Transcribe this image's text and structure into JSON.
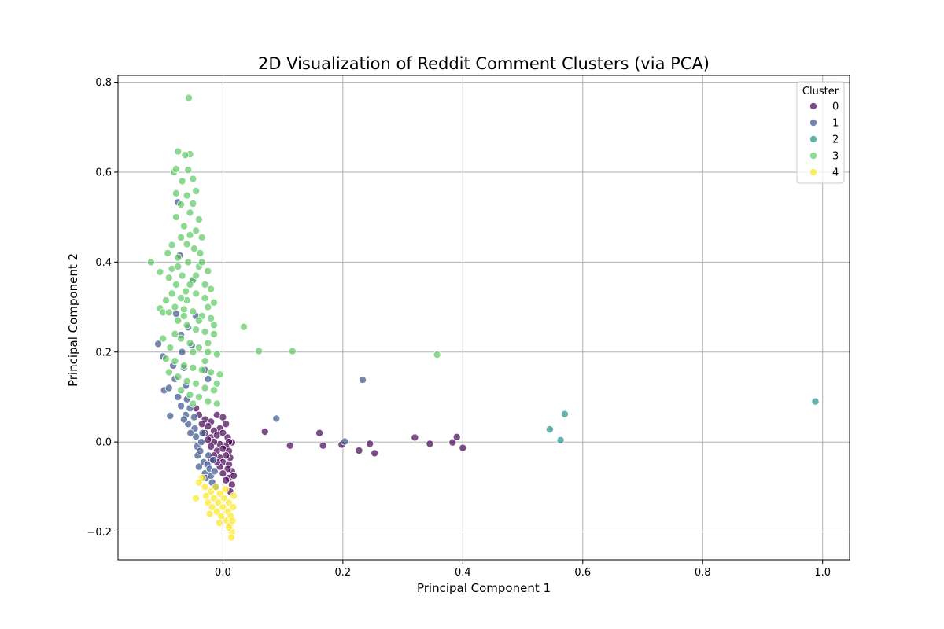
{
  "chart_data": {
    "type": "scatter",
    "title": "2D Visualization of Reddit Comment Clusters (via PCA)",
    "xlabel": "Principal Component 1",
    "ylabel": "Principal Component 2",
    "xlim": [
      -0.175,
      1.045
    ],
    "ylim": [
      -0.262,
      0.815
    ],
    "xticks": [
      0.0,
      0.2,
      0.4,
      0.6,
      0.8,
      1.0
    ],
    "xtick_labels": [
      "0.0",
      "0.2",
      "0.4",
      "0.6",
      "0.8",
      "1.0"
    ],
    "yticks": [
      -0.2,
      0.0,
      0.2,
      0.4,
      0.6,
      0.8
    ],
    "ytick_labels": [
      "−0.2",
      "0.0",
      "0.2",
      "0.4",
      "0.6",
      "0.8"
    ],
    "grid": true,
    "legend": {
      "title": "Cluster",
      "position": "top-right"
    },
    "point_alpha": 0.7,
    "series": [
      {
        "name": "0",
        "color": "#440154",
        "points": [
          [
            0.07,
            0.023
          ],
          [
            0.112,
            -0.008
          ],
          [
            0.161,
            0.02
          ],
          [
            0.167,
            -0.008
          ],
          [
            0.198,
            -0.006
          ],
          [
            0.227,
            -0.019
          ],
          [
            0.245,
            -0.004
          ],
          [
            0.253,
            -0.025
          ],
          [
            0.32,
            0.01
          ],
          [
            0.345,
            -0.004
          ],
          [
            0.383,
            -0.001
          ],
          [
            0.39,
            0.011
          ],
          [
            0.4,
            -0.013
          ],
          [
            0.015,
            -0.001
          ],
          [
            -0.045,
            0.075
          ],
          [
            -0.04,
            0.06
          ],
          [
            -0.03,
            0.05
          ],
          [
            -0.02,
            0.045
          ],
          [
            -0.01,
            0.06
          ],
          [
            0.0,
            0.055
          ],
          [
            0.005,
            0.04
          ],
          [
            -0.005,
            0.03
          ],
          [
            -0.015,
            0.025
          ],
          [
            -0.025,
            0.035
          ],
          [
            -0.035,
            0.04
          ],
          [
            -0.03,
            0.02
          ],
          [
            -0.02,
            0.01
          ],
          [
            -0.01,
            0.015
          ],
          [
            0.0,
            0.02
          ],
          [
            0.008,
            0.01
          ],
          [
            0.01,
            0.0
          ],
          [
            0.005,
            -0.01
          ],
          [
            -0.005,
            -0.005
          ],
          [
            -0.015,
            0.0
          ],
          [
            -0.025,
            0.005
          ],
          [
            -0.02,
            -0.01
          ],
          [
            -0.01,
            -0.02
          ],
          [
            0.0,
            -0.015
          ],
          [
            0.01,
            -0.02
          ],
          [
            0.012,
            -0.035
          ],
          [
            0.005,
            -0.03
          ],
          [
            -0.005,
            -0.035
          ],
          [
            -0.015,
            -0.03
          ],
          [
            0.0,
            -0.045
          ],
          [
            0.01,
            -0.05
          ],
          [
            0.015,
            -0.065
          ],
          [
            0.008,
            -0.06
          ],
          [
            0.0,
            -0.07
          ],
          [
            -0.005,
            -0.055
          ],
          [
            0.01,
            -0.08
          ],
          [
            0.015,
            -0.095
          ],
          [
            0.005,
            -0.085
          ],
          [
            0.012,
            -0.11
          ],
          [
            -0.01,
            -0.045
          ],
          [
            -0.02,
            -0.04
          ],
          [
            0.018,
            -0.075
          ]
        ]
      },
      {
        "name": "1",
        "color": "#3b528b",
        "points": [
          [
            0.233,
            0.138
          ],
          [
            0.089,
            0.052
          ],
          [
            0.203,
            0.001
          ],
          [
            -0.108,
            0.218
          ],
          [
            -0.1,
            0.19
          ],
          [
            -0.098,
            0.115
          ],
          [
            -0.088,
            0.058
          ],
          [
            -0.08,
            0.14
          ],
          [
            -0.078,
            0.285
          ],
          [
            -0.075,
            0.533
          ],
          [
            -0.072,
            0.415
          ],
          [
            -0.07,
            0.238
          ],
          [
            -0.068,
            0.2
          ],
          [
            -0.065,
            0.165
          ],
          [
            -0.062,
            0.125
          ],
          [
            -0.06,
            0.095
          ],
          [
            -0.058,
            0.255
          ],
          [
            -0.055,
            0.075
          ],
          [
            -0.052,
            0.215
          ],
          [
            -0.05,
            0.36
          ],
          [
            -0.048,
            0.055
          ],
          [
            -0.047,
            0.03
          ],
          [
            -0.045,
            0.012
          ],
          [
            -0.043,
            -0.01
          ],
          [
            -0.042,
            -0.03
          ],
          [
            -0.04,
            -0.055
          ],
          [
            -0.038,
            -0.02
          ],
          [
            -0.036,
            0.0
          ],
          [
            -0.034,
            0.02
          ],
          [
            -0.032,
            -0.045
          ],
          [
            -0.03,
            -0.07
          ],
          [
            -0.028,
            -0.08
          ],
          [
            -0.026,
            -0.05
          ],
          [
            -0.024,
            -0.03
          ],
          [
            -0.022,
            -0.06
          ],
          [
            -0.02,
            -0.075
          ],
          [
            -0.018,
            -0.09
          ],
          [
            -0.016,
            -0.04
          ],
          [
            -0.014,
            -0.065
          ],
          [
            -0.012,
            -0.1
          ],
          [
            -0.03,
            0.16
          ],
          [
            -0.025,
            0.14
          ],
          [
            -0.045,
            0.28
          ],
          [
            -0.062,
            0.06
          ],
          [
            -0.058,
            0.04
          ],
          [
            -0.054,
            0.02
          ],
          [
            -0.07,
            0.08
          ],
          [
            -0.075,
            0.1
          ],
          [
            -0.083,
            0.17
          ],
          [
            -0.09,
            0.12
          ],
          [
            -0.065,
            0.05
          ]
        ]
      },
      {
        "name": "2",
        "color": "#21918c",
        "points": [
          [
            0.545,
            0.028
          ],
          [
            0.57,
            0.062
          ],
          [
            0.563,
            0.004
          ],
          [
            0.988,
            0.09
          ]
        ]
      },
      {
        "name": "3",
        "color": "#5ec962",
        "points": [
          [
            -0.057,
            0.765
          ],
          [
            -0.075,
            0.646
          ],
          [
            -0.055,
            0.64
          ],
          [
            -0.063,
            0.638
          ],
          [
            -0.082,
            0.6
          ],
          [
            -0.078,
            0.607
          ],
          [
            -0.058,
            0.605
          ],
          [
            -0.05,
            0.585
          ],
          [
            -0.068,
            0.58
          ],
          [
            -0.045,
            0.558
          ],
          [
            -0.078,
            0.553
          ],
          [
            -0.06,
            0.548
          ],
          [
            -0.05,
            0.53
          ],
          [
            -0.07,
            0.528
          ],
          [
            -0.055,
            0.51
          ],
          [
            -0.04,
            0.495
          ],
          [
            -0.078,
            0.5
          ],
          [
            -0.065,
            0.48
          ],
          [
            -0.045,
            0.47
          ],
          [
            -0.055,
            0.46
          ],
          [
            -0.07,
            0.455
          ],
          [
            -0.085,
            0.438
          ],
          [
            -0.035,
            0.455
          ],
          [
            -0.06,
            0.44
          ],
          [
            -0.048,
            0.43
          ],
          [
            -0.038,
            0.42
          ],
          [
            -0.092,
            0.42
          ],
          [
            -0.075,
            0.41
          ],
          [
            -0.058,
            0.4
          ],
          [
            -0.04,
            0.39
          ],
          [
            -0.025,
            0.38
          ],
          [
            -0.12,
            0.4
          ],
          [
            -0.105,
            0.378
          ],
          [
            -0.085,
            0.385
          ],
          [
            -0.068,
            0.37
          ],
          [
            -0.05,
            0.36
          ],
          [
            -0.03,
            0.35
          ],
          [
            -0.02,
            0.34
          ],
          [
            -0.09,
            0.365
          ],
          [
            -0.078,
            0.35
          ],
          [
            -0.062,
            0.335
          ],
          [
            -0.045,
            0.33
          ],
          [
            -0.03,
            0.32
          ],
          [
            -0.015,
            0.31
          ],
          [
            -0.095,
            0.315
          ],
          [
            -0.08,
            0.3
          ],
          [
            -0.065,
            0.295
          ],
          [
            -0.05,
            0.29
          ],
          [
            -0.035,
            0.28
          ],
          [
            -0.02,
            0.275
          ],
          [
            -0.105,
            0.297
          ],
          [
            -0.1,
            0.288
          ],
          [
            -0.09,
            0.288
          ],
          [
            -0.075,
            0.27
          ],
          [
            -0.06,
            0.26
          ],
          [
            -0.045,
            0.25
          ],
          [
            -0.03,
            0.245
          ],
          [
            -0.015,
            0.24
          ],
          [
            -0.08,
            0.24
          ],
          [
            -0.07,
            0.23
          ],
          [
            -0.1,
            0.23
          ],
          [
            -0.055,
            0.22
          ],
          [
            -0.04,
            0.21
          ],
          [
            -0.025,
            0.2
          ],
          [
            -0.01,
            0.195
          ],
          [
            -0.088,
            0.21
          ],
          [
            -0.095,
            0.185
          ],
          [
            -0.08,
            0.18
          ],
          [
            -0.065,
            0.17
          ],
          [
            -0.05,
            0.165
          ],
          [
            -0.035,
            0.16
          ],
          [
            -0.02,
            0.155
          ],
          [
            -0.005,
            0.15
          ],
          [
            -0.09,
            0.155
          ],
          [
            -0.075,
            0.145
          ],
          [
            -0.06,
            0.135
          ],
          [
            -0.045,
            0.13
          ],
          [
            -0.03,
            0.12
          ],
          [
            -0.015,
            0.115
          ],
          [
            -0.07,
            0.115
          ],
          [
            -0.055,
            0.105
          ],
          [
            -0.04,
            0.1
          ],
          [
            -0.025,
            0.09
          ],
          [
            -0.01,
            0.085
          ],
          [
            -0.05,
            0.085
          ],
          [
            0.035,
            0.256
          ],
          [
            0.06,
            0.202
          ],
          [
            0.116,
            0.202
          ],
          [
            0.357,
            0.194
          ],
          [
            -0.06,
            0.315
          ],
          [
            -0.04,
            0.27
          ],
          [
            -0.025,
            0.22
          ],
          [
            -0.01,
            0.13
          ],
          [
            -0.03,
            0.18
          ],
          [
            -0.05,
            0.2
          ],
          [
            -0.065,
            0.28
          ],
          [
            -0.07,
            0.32
          ],
          [
            -0.055,
            0.35
          ],
          [
            -0.075,
            0.39
          ],
          [
            -0.085,
            0.33
          ],
          [
            -0.035,
            0.4
          ],
          [
            -0.045,
            0.37
          ],
          [
            -0.025,
            0.3
          ],
          [
            -0.015,
            0.26
          ]
        ]
      },
      {
        "name": "4",
        "color": "#fde725",
        "points": [
          [
            -0.035,
            -0.08
          ],
          [
            -0.03,
            -0.1
          ],
          [
            -0.028,
            -0.12
          ],
          [
            -0.025,
            -0.135
          ],
          [
            -0.02,
            -0.11
          ],
          [
            -0.018,
            -0.145
          ],
          [
            -0.015,
            -0.125
          ],
          [
            -0.012,
            -0.1
          ],
          [
            -0.01,
            -0.155
          ],
          [
            -0.008,
            -0.135
          ],
          [
            -0.005,
            -0.115
          ],
          [
            -0.003,
            -0.165
          ],
          [
            0.0,
            -0.145
          ],
          [
            0.002,
            -0.125
          ],
          [
            0.004,
            -0.105
          ],
          [
            0.006,
            -0.175
          ],
          [
            0.008,
            -0.155
          ],
          [
            0.01,
            -0.135
          ],
          [
            0.012,
            -0.185
          ],
          [
            0.013,
            -0.165
          ],
          [
            0.015,
            -0.2
          ],
          [
            0.014,
            -0.212
          ],
          [
            0.016,
            -0.175
          ],
          [
            0.017,
            -0.145
          ],
          [
            0.01,
            -0.19
          ],
          [
            -0.045,
            -0.125
          ],
          [
            -0.04,
            -0.09
          ],
          [
            -0.022,
            -0.16
          ],
          [
            0.018,
            -0.12
          ],
          [
            -0.006,
            -0.18
          ]
        ]
      }
    ]
  }
}
